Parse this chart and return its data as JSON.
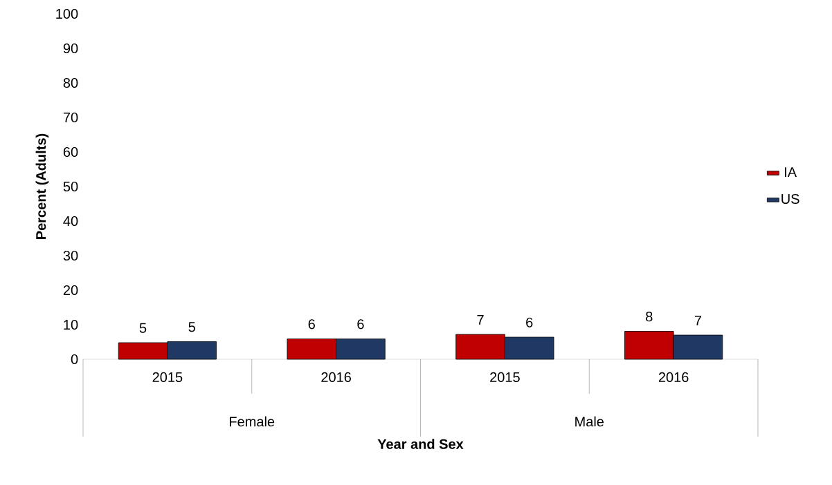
{
  "chart_data": {
    "type": "bar",
    "categories": [
      "2015",
      "2016",
      "2015",
      "2016"
    ],
    "series": [
      {
        "name": "IA",
        "color": "#c00000",
        "values": [
          4.8,
          5.9,
          7.2,
          8.1
        ],
        "value_labels": [
          "5",
          "6",
          "7",
          "8"
        ]
      },
      {
        "name": "US",
        "color": "#1f3864",
        "values": [
          5.1,
          5.9,
          6.4,
          7.0
        ],
        "value_labels": [
          "5",
          "6",
          "6",
          "7"
        ]
      }
    ],
    "ylim": [
      0,
      100
    ],
    "yticks": [
      0,
      10,
      20,
      30,
      40,
      50,
      60,
      70,
      80,
      90,
      100
    ],
    "ylabel": "Percent (Adults)",
    "xlabel": "Year and Sex",
    "annotations": [
      "Female",
      "Male"
    ],
    "legend": "right",
    "grid": false
  }
}
